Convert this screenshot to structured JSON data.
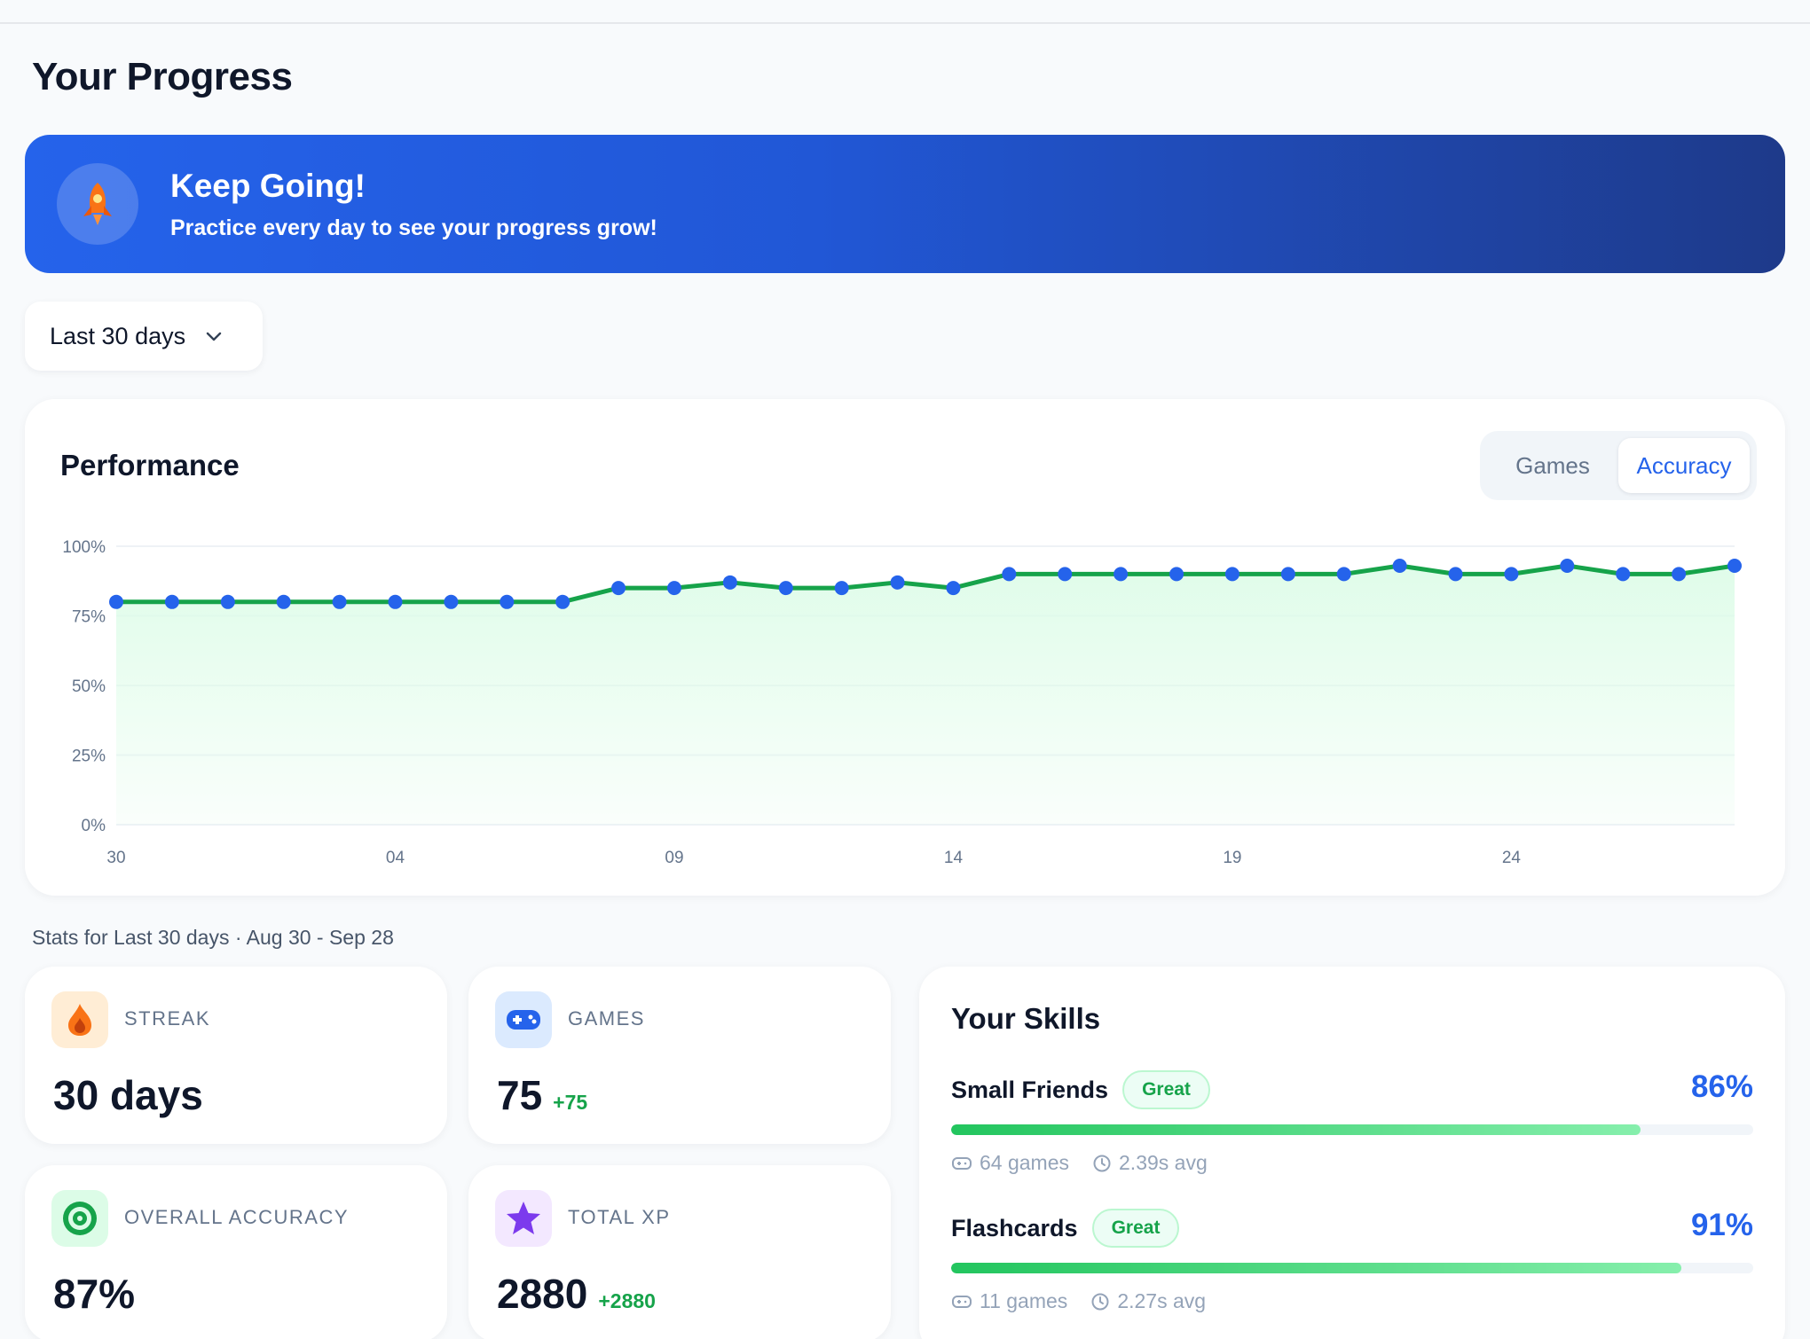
{
  "page": {
    "title": "Your Progress"
  },
  "banner": {
    "icon": "rocket-icon",
    "title": "Keep Going!",
    "subtitle": "Practice every day to see your progress grow!"
  },
  "range": {
    "selected": "Last 30 days",
    "icon": "chevron-down-icon"
  },
  "performance": {
    "title": "Performance",
    "tabs": [
      {
        "label": "Games",
        "active": false
      },
      {
        "label": "Accuracy",
        "active": true
      }
    ]
  },
  "chart_data": {
    "type": "area",
    "ylim": [
      0,
      100
    ],
    "yticks": [
      "0%",
      "25%",
      "50%",
      "75%",
      "100%"
    ],
    "ytick_values": [
      0,
      25,
      50,
      75,
      100
    ],
    "x": [
      "30",
      "31",
      "01",
      "02",
      "03",
      "04",
      "05",
      "06",
      "07",
      "08",
      "09",
      "10",
      "11",
      "12",
      "13",
      "14",
      "15",
      "16",
      "17",
      "18",
      "19",
      "20",
      "21",
      "22",
      "23",
      "24",
      "25",
      "26",
      "27",
      "28"
    ],
    "xtick_labels": [
      "30",
      "04",
      "09",
      "14",
      "19",
      "24"
    ],
    "series": [
      {
        "values": [
          80,
          80,
          80,
          80,
          80,
          80,
          80,
          80,
          80,
          85,
          85,
          87,
          85,
          85,
          87,
          85,
          90,
          90,
          90,
          90,
          90,
          90,
          90,
          93,
          90,
          90,
          93,
          90,
          90,
          93
        ]
      }
    ],
    "grid": true,
    "colors": {
      "line": "#16a34a",
      "point": "#2563eb",
      "fill": "#dcfce7"
    }
  },
  "stats": {
    "caption": "Stats for Last 30 days · Aug 30 - Sep 28",
    "streak": {
      "label": "STREAK",
      "value": "30 days",
      "icon": "flame-icon"
    },
    "games": {
      "label": "GAMES",
      "value": "75",
      "delta": "+75",
      "icon": "gamepad-icon"
    },
    "accuracy": {
      "label": "OVERALL ACCURACY",
      "value": "87%",
      "icon": "target-icon"
    },
    "xp": {
      "label": "TOTAL XP",
      "value": "2880",
      "delta": "+2880",
      "icon": "star-icon"
    }
  },
  "skills": {
    "title": "Your Skills",
    "items": [
      {
        "name": "Small Friends",
        "badge": "Great",
        "percent": "86%",
        "progress": 86,
        "games": "64 games",
        "avg": "2.39s avg"
      },
      {
        "name": "Flashcards",
        "badge": "Great",
        "percent": "91%",
        "progress": 91,
        "games": "11 games",
        "avg": "2.27s avg"
      }
    ]
  }
}
